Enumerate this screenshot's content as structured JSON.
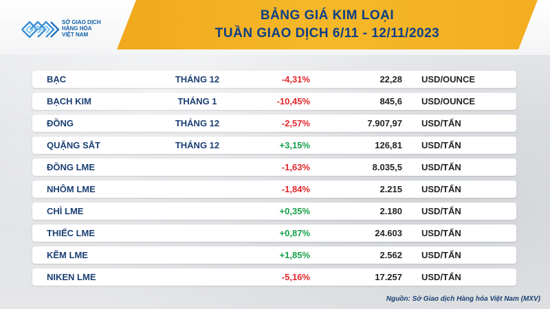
{
  "header": {
    "title_line1": "BẢNG GIÁ KIM LOẠI",
    "title_line2": "TUẦN GIAO DỊCH 6/11 - 12/11/2023"
  },
  "logo": {
    "line1": "SỞ GIAO DỊCH",
    "line2": "HÀNG HÓA",
    "line3": "VIỆT NAM"
  },
  "colors": {
    "banner": "#f6b829",
    "title_text": "#0d3f86",
    "negative": "#e3262a",
    "positive": "#16a04a"
  },
  "rows": [
    {
      "name": "BẠC",
      "month": "THÁNG 12",
      "change": "-4,31%",
      "direction": "down",
      "price": "22,28",
      "unit": "USD/OUNCE"
    },
    {
      "name": "BẠCH KIM",
      "month": "THÁNG 1",
      "change": "-10,45%",
      "direction": "down",
      "price": "845,6",
      "unit": "USD/OUNCE"
    },
    {
      "name": "ĐỒNG",
      "month": "THÁNG 12",
      "change": "-2,57%",
      "direction": "down",
      "price": "7.907,97",
      "unit": "USD/TẤN"
    },
    {
      "name": "QUẶNG SẮT",
      "month": "THÁNG 12",
      "change": "+3,15%",
      "direction": "up",
      "price": "126,81",
      "unit": "USD/TẤN"
    },
    {
      "name": "ĐỒNG LME",
      "month": "",
      "change": "-1,63%",
      "direction": "down",
      "price": "8.035,5",
      "unit": "USD/TẤN"
    },
    {
      "name": "NHÔM LME",
      "month": "",
      "change": "-1,84%",
      "direction": "down",
      "price": "2.215",
      "unit": "USD/TẤN"
    },
    {
      "name": "CHÌ LME",
      "month": "",
      "change": "+0,35%",
      "direction": "up",
      "price": "2.180",
      "unit": "USD/TẤN"
    },
    {
      "name": "THIẾC LME",
      "month": "",
      "change": "+0,87%",
      "direction": "up",
      "price": "24.603",
      "unit": "USD/TẤN"
    },
    {
      "name": "KẼM LME",
      "month": "",
      "change": "+1,85%",
      "direction": "up",
      "price": "2.562",
      "unit": "USD/TẤN"
    },
    {
      "name": "NIKEN LME",
      "month": "",
      "change": "-5,16%",
      "direction": "down",
      "price": "17.257",
      "unit": "USD/TẤN"
    }
  ],
  "source": "Nguồn: Sở Giao dịch Hàng hóa Việt Nam (MXV)"
}
